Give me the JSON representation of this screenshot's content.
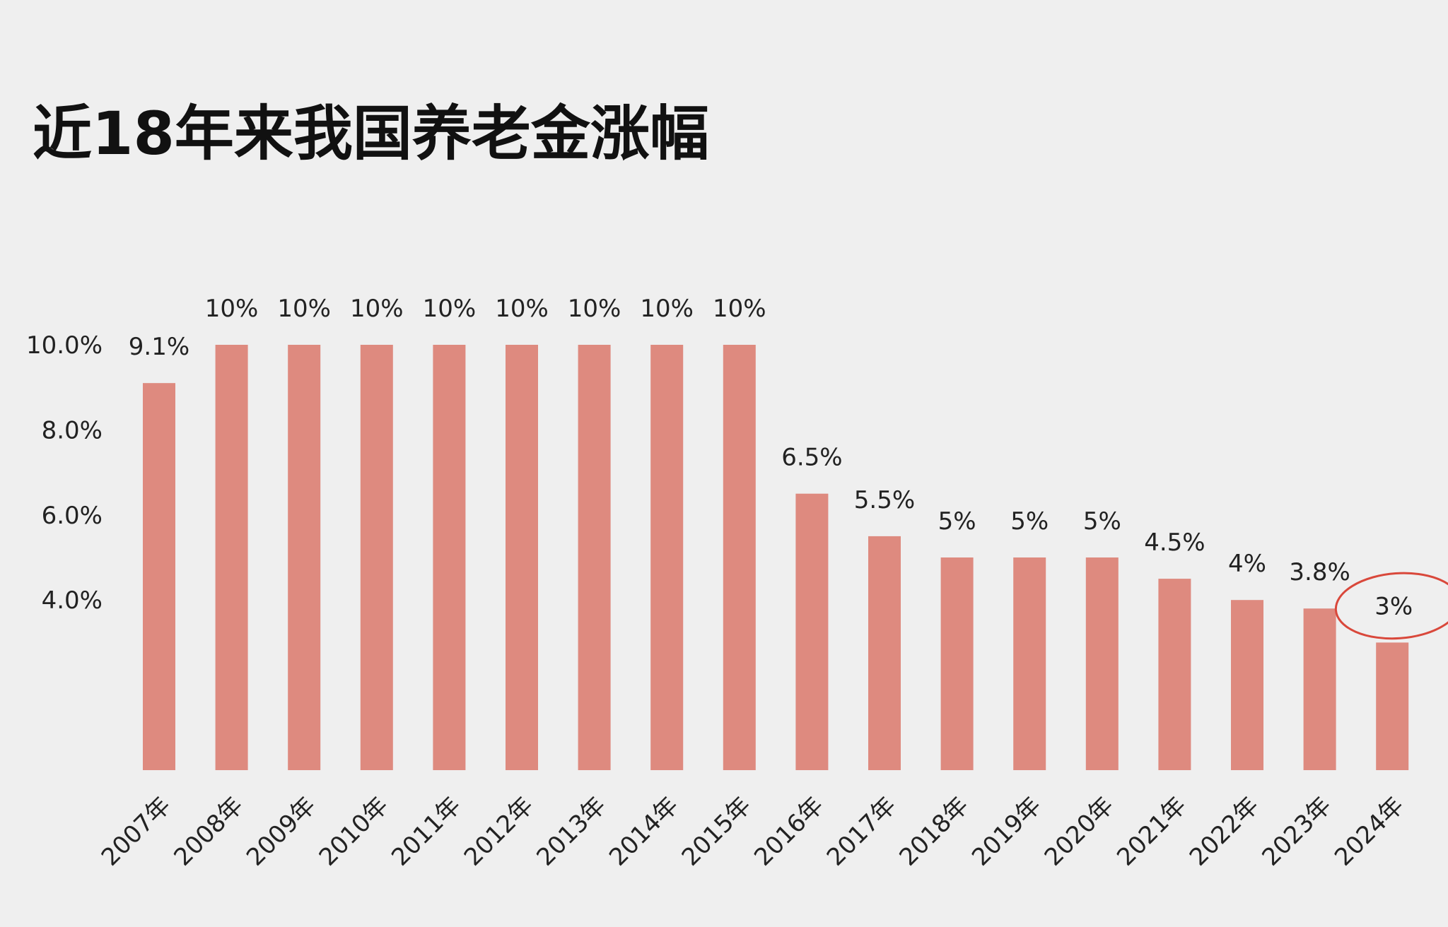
{
  "chart_data": {
    "type": "bar",
    "title": "近18年来我国养老金涨幅",
    "xlabel": "",
    "ylabel": "",
    "categories": [
      "2007年",
      "2008年",
      "2009年",
      "2010年",
      "2011年",
      "2012年",
      "2013年",
      "2014年",
      "2015年",
      "2016年",
      "2017年",
      "2018年",
      "2019年",
      "2020年",
      "2021年",
      "2022年",
      "2023年",
      "2024年"
    ],
    "values": [
      9.1,
      10,
      10,
      10,
      10,
      10,
      10,
      10,
      10,
      6.5,
      5.5,
      5,
      5,
      5,
      4.5,
      4,
      3.8,
      3
    ],
    "data_labels": [
      "9.1%",
      "10%",
      "10%",
      "10%",
      "10%",
      "10%",
      "10%",
      "10%",
      "10%",
      "6.5%",
      "5.5%",
      "5%",
      "5%",
      "5%",
      "4.5%",
      "4%",
      "3.8%",
      "3%"
    ],
    "yticks": [
      4,
      6,
      8,
      10
    ],
    "ytick_labels": [
      "4.0%",
      "6.0%",
      "8.0%",
      "10.0%"
    ],
    "ylim": [
      0,
      10.5
    ],
    "grid": false,
    "legend": false,
    "highlight_index": 17,
    "colors": {
      "bar": "#de8a7f",
      "highlight_circle": "#d9483b",
      "background": "#efefef",
      "text": "#222222"
    }
  }
}
